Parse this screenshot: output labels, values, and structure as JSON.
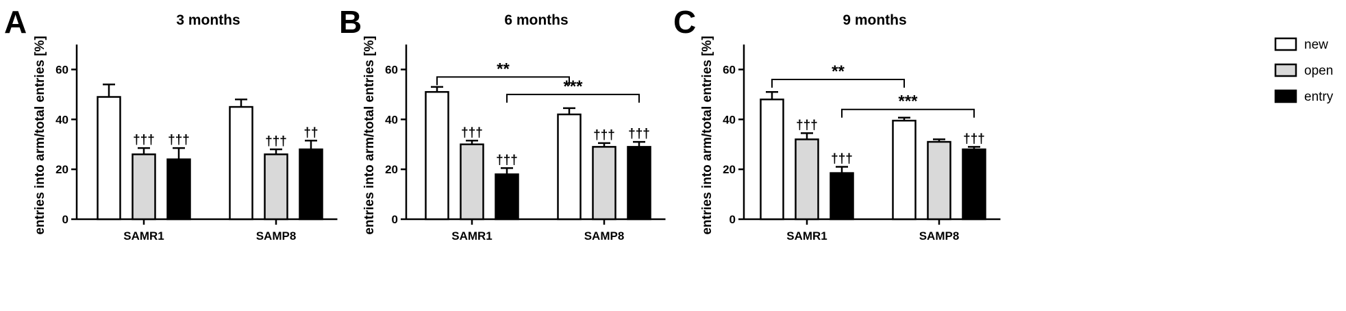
{
  "ylabel": "entries into arm/total entries [%]",
  "legend": {
    "placement": "top-right",
    "items": [
      {
        "label": "new",
        "fill": "#ffffff"
      },
      {
        "label": "open",
        "fill": "#d9d9d9"
      },
      {
        "label": "entry",
        "fill": "#000000"
      }
    ]
  },
  "colors": {
    "new": "#ffffff",
    "open": "#d9d9d9",
    "entry": "#000000",
    "stroke": "#000000"
  },
  "chart_data": [
    {
      "type": "bar",
      "panel": "A",
      "title": "3 months",
      "categories": [
        "SAMR1",
        "SAMP8"
      ],
      "ylabel": "entries into arm/total entries [%]",
      "ylim": [
        0,
        70
      ],
      "yticks": [
        0,
        20,
        40,
        60
      ],
      "series": [
        {
          "name": "new",
          "values": [
            49,
            45
          ],
          "errors": [
            5,
            3
          ],
          "marks": [
            "",
            ""
          ]
        },
        {
          "name": "open",
          "values": [
            26,
            26
          ],
          "errors": [
            2.5,
            2
          ],
          "marks": [
            "†††",
            "†††"
          ]
        },
        {
          "name": "entry",
          "values": [
            24,
            28
          ],
          "errors": [
            4.5,
            3.5
          ],
          "marks": [
            "†††",
            "††"
          ]
        }
      ],
      "brackets": []
    },
    {
      "type": "bar",
      "panel": "B",
      "title": "6 months",
      "categories": [
        "SAMR1",
        "SAMP8"
      ],
      "ylabel": "entries into arm/total entries [%]",
      "ylim": [
        0,
        70
      ],
      "yticks": [
        0,
        20,
        40,
        60
      ],
      "series": [
        {
          "name": "new",
          "values": [
            51,
            42
          ],
          "errors": [
            2,
            2.5
          ],
          "marks": [
            "",
            ""
          ]
        },
        {
          "name": "open",
          "values": [
            30,
            29
          ],
          "errors": [
            1.5,
            1.5
          ],
          "marks": [
            "†††",
            "†††"
          ]
        },
        {
          "name": "entry",
          "values": [
            18,
            29
          ],
          "errors": [
            2.5,
            2
          ],
          "marks": [
            "†††",
            "†††"
          ]
        }
      ],
      "brackets": [
        {
          "from": [
            0,
            0
          ],
          "to": [
            1,
            0
          ],
          "level": 57,
          "label": "**"
        },
        {
          "from": [
            0,
            2
          ],
          "to": [
            1,
            2
          ],
          "level": 50,
          "label": "***"
        }
      ]
    },
    {
      "type": "bar",
      "panel": "C",
      "title": "9 months",
      "categories": [
        "SAMR1",
        "SAMP8"
      ],
      "ylabel": "entries into arm/total entries [%]",
      "ylim": [
        0,
        70
      ],
      "yticks": [
        0,
        20,
        40,
        60
      ],
      "series": [
        {
          "name": "new",
          "values": [
            48,
            39.5
          ],
          "errors": [
            3,
            1.2
          ],
          "marks": [
            "",
            ""
          ]
        },
        {
          "name": "open",
          "values": [
            32,
            31
          ],
          "errors": [
            2.5,
            1
          ],
          "marks": [
            "†††",
            ""
          ]
        },
        {
          "name": "entry",
          "values": [
            18.5,
            28
          ],
          "errors": [
            2.5,
            1
          ],
          "marks": [
            "†††",
            "†††"
          ]
        }
      ],
      "brackets": [
        {
          "from": [
            0,
            0
          ],
          "to": [
            1,
            0
          ],
          "level": 56,
          "label": "**"
        },
        {
          "from": [
            0,
            2
          ],
          "to": [
            1,
            2
          ],
          "level": 44,
          "label": "***"
        }
      ]
    }
  ]
}
